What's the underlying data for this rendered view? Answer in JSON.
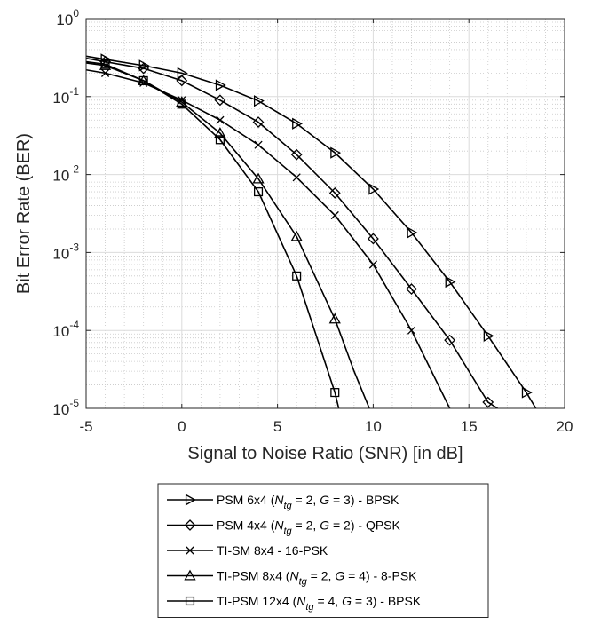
{
  "chart_data": {
    "type": "line",
    "title": "",
    "xlabel": "Signal to Noise Ratio (SNR) [in dB]",
    "ylabel": "Bit Error Rate (BER)",
    "xlim": [
      -5,
      20
    ],
    "ylim": [
      1e-05,
      1
    ],
    "yscale": "log",
    "grid": true,
    "minor_grid": true,
    "legend_position": "below",
    "x_ticks": [
      -5,
      0,
      5,
      10,
      15,
      20
    ],
    "x_tick_labels": [
      "-5",
      "0",
      "5",
      "10",
      "15",
      "20"
    ],
    "y_ticks": [
      1,
      0.1,
      0.01,
      0.001,
      0.0001,
      1e-05
    ],
    "y_tick_labels": [
      {
        "base": "10",
        "exp": "0"
      },
      {
        "base": "10",
        "exp": "-1"
      },
      {
        "base": "10",
        "exp": "-2"
      },
      {
        "base": "10",
        "exp": "-3"
      },
      {
        "base": "10",
        "exp": "-4"
      },
      {
        "base": "10",
        "exp": "-5"
      }
    ],
    "series": [
      {
        "name": "PSM 6x4 (N_tg = 2, G = 3) - BPSK",
        "legend_parts": [
          {
            "t": "PSM 6x4 ("
          },
          {
            "t": "N",
            "italic": true
          },
          {
            "t": "tg",
            "italic": true,
            "sub": true
          },
          {
            "t": " = 2, "
          },
          {
            "t": "G",
            "italic": true
          },
          {
            "t": " = 3) - BPSK"
          }
        ],
        "marker": "triangle-right",
        "color": "#000000",
        "x": [
          -5,
          -4,
          -2,
          0,
          2,
          4,
          6,
          8,
          10,
          12,
          14,
          16,
          18,
          18.5
        ],
        "y": [
          0.33,
          0.3,
          0.25,
          0.2,
          0.14,
          0.088,
          0.045,
          0.019,
          0.0065,
          0.0018,
          0.00042,
          8.5e-05,
          1.6e-05,
          1e-05
        ]
      },
      {
        "name": "PSM 4x4 (N_tg = 2, G = 2) - QPSK",
        "legend_parts": [
          {
            "t": "PSM 4x4 ("
          },
          {
            "t": "N",
            "italic": true
          },
          {
            "t": "tg",
            "italic": true,
            "sub": true
          },
          {
            "t": " = 2, "
          },
          {
            "t": "G",
            "italic": true
          },
          {
            "t": " = 2) - QPSK"
          }
        ],
        "marker": "diamond",
        "color": "#000000",
        "x": [
          -5,
          -4,
          -2,
          0,
          2,
          4,
          6,
          8,
          10,
          12,
          14,
          16,
          16.5
        ],
        "y": [
          0.31,
          0.28,
          0.23,
          0.16,
          0.09,
          0.047,
          0.018,
          0.0058,
          0.0015,
          0.00034,
          7.5e-05,
          1.2e-05,
          1e-05
        ]
      },
      {
        "name": "TI-SM 8x4 - 16-PSK",
        "legend_parts": [
          {
            "t": "TI-SM 8x4 - 16-PSK"
          }
        ],
        "marker": "x",
        "color": "#000000",
        "x": [
          -5,
          -4,
          -2,
          0,
          2,
          4,
          6,
          8,
          10,
          12,
          14
        ],
        "y": [
          0.22,
          0.2,
          0.15,
          0.09,
          0.05,
          0.024,
          0.0092,
          0.003,
          0.0007,
          0.0001,
          1e-05
        ]
      },
      {
        "name": "TI-PSM 8x4 (N_tg = 2, G = 4) - 8-PSK",
        "legend_parts": [
          {
            "t": "TI-PSM 8x4 ("
          },
          {
            "t": "N",
            "italic": true
          },
          {
            "t": "tg",
            "italic": true,
            "sub": true
          },
          {
            "t": " = 2, "
          },
          {
            "t": "G",
            "italic": true
          },
          {
            "t": " = 4) - 8-PSK"
          }
        ],
        "marker": "triangle-up",
        "color": "#000000",
        "x": [
          -5,
          -4,
          -2,
          0,
          2,
          4,
          6,
          8,
          9,
          9.8
        ],
        "y": [
          0.27,
          0.25,
          0.16,
          0.085,
          0.034,
          0.0088,
          0.0016,
          0.00014,
          3e-05,
          1e-05
        ]
      },
      {
        "name": "TI-PSM 12x4 (N_tg = 4, G = 3) - BPSK",
        "legend_parts": [
          {
            "t": "TI-PSM 12x4 ("
          },
          {
            "t": "N",
            "italic": true
          },
          {
            "t": "tg",
            "italic": true,
            "sub": true
          },
          {
            "t": " = 4, "
          },
          {
            "t": "G",
            "italic": true
          },
          {
            "t": " = 3) - BPSK"
          }
        ],
        "marker": "square",
        "color": "#000000",
        "x": [
          -5,
          -4,
          -2,
          0,
          2,
          4,
          6,
          8,
          8.2
        ],
        "y": [
          0.28,
          0.26,
          0.16,
          0.08,
          0.028,
          0.006,
          0.0005,
          1.6e-05,
          1e-05
        ]
      }
    ]
  }
}
